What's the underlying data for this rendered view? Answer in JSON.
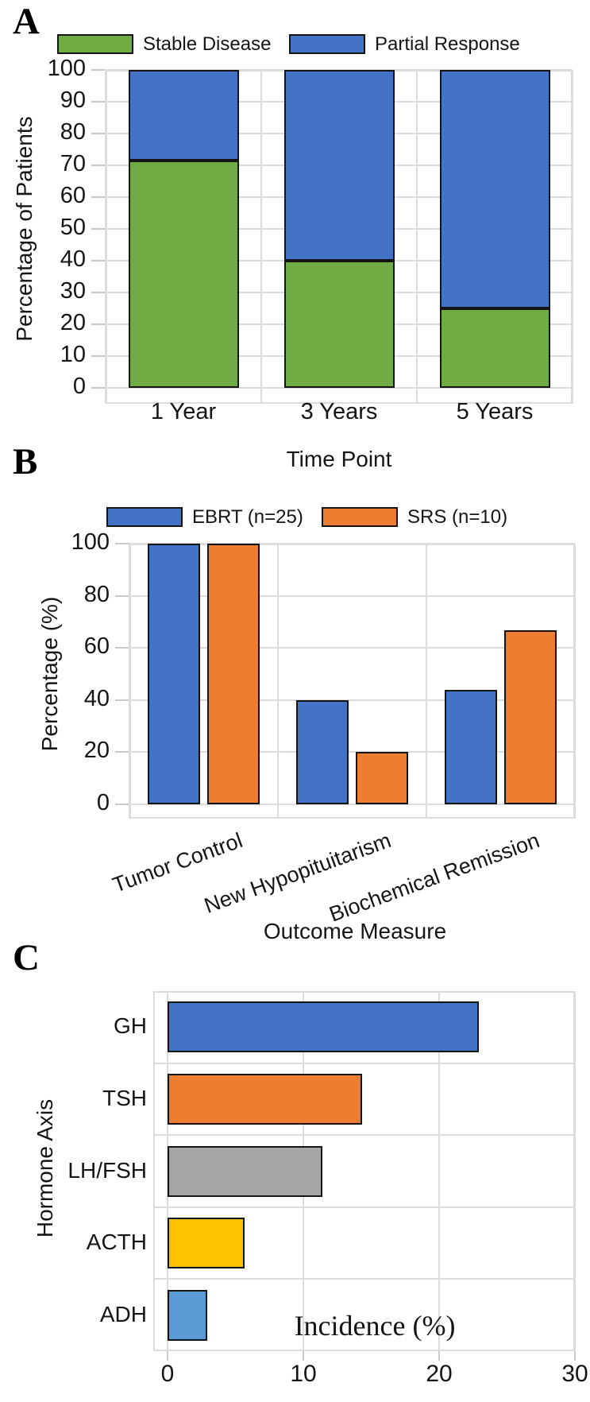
{
  "chart_data": [
    {
      "panel": "A",
      "type": "bar",
      "subtype": "stacked-vertical",
      "categories": [
        "1 Year",
        "3 Years",
        "5 Years"
      ],
      "series": [
        {
          "name": "Stable Disease",
          "color": "#6FAC46",
          "values": [
            71.4,
            40,
            25
          ]
        },
        {
          "name": "Partial Response",
          "color": "#4472C4",
          "values": [
            28.6,
            60,
            75
          ]
        }
      ],
      "xlabel": "Time Point",
      "ylabel": "Percentage of Patients",
      "ylim": [
        0,
        100
      ],
      "yticks": [
        0,
        10,
        20,
        30,
        40,
        50,
        60,
        70,
        80,
        90,
        100
      ],
      "grid": true,
      "legend_position": "top"
    },
    {
      "panel": "B",
      "type": "bar",
      "subtype": "grouped-vertical",
      "categories": [
        "Tumor Control",
        "New Hypopituitarism",
        "Biochemical Remission"
      ],
      "series": [
        {
          "name": "EBRT (n=25)",
          "color": "#4472C4",
          "values": [
            100,
            40,
            44
          ]
        },
        {
          "name": "SRS (n=10)",
          "color": "#ED7D31",
          "values": [
            100,
            20,
            66.7
          ]
        }
      ],
      "xlabel": "Outcome Measure",
      "ylabel": "Percentage (%)",
      "ylim": [
        0,
        100
      ],
      "yticks": [
        0,
        20,
        40,
        60,
        80,
        100
      ],
      "grid": true,
      "legend_position": "top"
    },
    {
      "panel": "C",
      "type": "bar",
      "subtype": "horizontal",
      "categories": [
        "GH",
        "TSH",
        "LH/FSH",
        "ACTH",
        "ADH"
      ],
      "values": [
        22.9,
        14.3,
        11.4,
        5.7,
        2.9
      ],
      "colors": [
        "#4472C4",
        "#ED7D31",
        "#A5A5A5",
        "#FFC000",
        "#5B9BD5"
      ],
      "xlabel": "Incidence (%)",
      "ylabel": "Hormone Axis",
      "xlim": [
        0,
        30
      ],
      "xticks": [
        0,
        10,
        20,
        30
      ],
      "grid": true
    }
  ],
  "style": {
    "grid_color": "#dcdcdc",
    "bar_border_color": "#141414",
    "text_color": "#151515",
    "background": "#ffffff"
  }
}
